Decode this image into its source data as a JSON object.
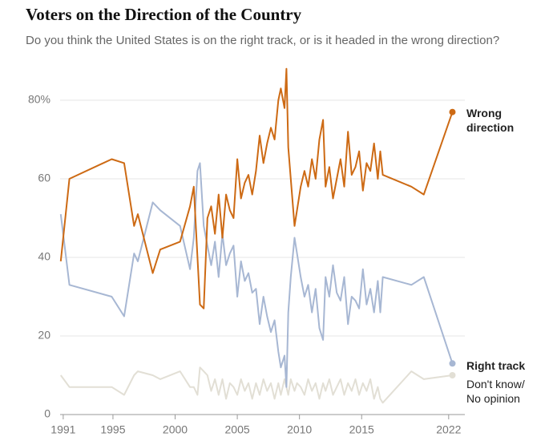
{
  "chart_data": {
    "type": "line",
    "title": "Voters on the Direction of the Country",
    "subtitle": "Do you think the United States is on the right track, or is it headed in the wrong direction?",
    "x": [
      1990.8,
      1991.5,
      1994.9,
      1995.9,
      1996.7,
      1997.0,
      1998.2,
      1998.8,
      2000.4,
      2001.2,
      2001.5,
      2001.8,
      2002.0,
      2002.3,
      2002.6,
      2002.9,
      2003.2,
      2003.5,
      2003.8,
      2004.1,
      2004.4,
      2004.7,
      2005.0,
      2005.3,
      2005.6,
      2005.9,
      2006.2,
      2006.5,
      2006.8,
      2007.1,
      2007.4,
      2007.7,
      2008.0,
      2008.3,
      2008.5,
      2008.8,
      2008.95,
      2009.1,
      2009.3,
      2009.6,
      2009.8,
      2010.1,
      2010.4,
      2010.7,
      2011.0,
      2011.3,
      2011.6,
      2011.9,
      2012.1,
      2012.4,
      2012.7,
      2013.0,
      2013.3,
      2013.6,
      2013.9,
      2014.2,
      2014.5,
      2014.8,
      2015.1,
      2015.4,
      2015.7,
      2016.0,
      2016.3,
      2016.5,
      2016.7,
      2019.0,
      2020.0,
      2022.3
    ],
    "series": [
      {
        "name": "Wrong direction",
        "color": "#cd6a14",
        "values": [
          39,
          60,
          65,
          64,
          48,
          51,
          36,
          42,
          44,
          53,
          58,
          40,
          28,
          27,
          50,
          53,
          46,
          56,
          45,
          56,
          52,
          50,
          65,
          55,
          59,
          61,
          56,
          62,
          71,
          64,
          69,
          73,
          70,
          80,
          83,
          78,
          88,
          68,
          60,
          48,
          52,
          58,
          62,
          58,
          65,
          60,
          70,
          75,
          58,
          63,
          55,
          60,
          65,
          58,
          72,
          61,
          63,
          67,
          57,
          64,
          62,
          69,
          60,
          67,
          61,
          58,
          56,
          77
        ]
      },
      {
        "name": "Right track",
        "color": "#a7b7d3",
        "values": [
          51,
          33,
          30,
          25,
          41,
          39,
          54,
          52,
          48,
          37,
          45,
          62,
          64,
          48,
          43,
          38,
          44,
          35,
          46,
          38,
          41,
          43,
          30,
          39,
          34,
          36,
          31,
          32,
          23,
          30,
          25,
          21,
          24,
          16,
          12,
          15,
          7,
          26,
          35,
          45,
          41,
          35,
          30,
          33,
          26,
          32,
          22,
          19,
          35,
          30,
          38,
          31,
          29,
          35,
          23,
          30,
          29,
          27,
          37,
          28,
          32,
          26,
          34,
          26,
          35,
          33,
          35,
          13
        ]
      },
      {
        "name": "Don't know/ No opinion",
        "color": "#e2dfd5",
        "values": [
          10,
          7,
          7,
          5,
          10,
          11,
          10,
          9,
          11,
          7,
          7,
          5,
          12,
          11,
          10,
          6,
          9,
          5,
          9,
          4,
          8,
          7,
          5,
          9,
          6,
          8,
          4,
          8,
          5,
          9,
          6,
          8,
          4,
          8,
          5,
          9,
          7,
          5,
          9,
          6,
          8,
          7,
          5,
          9,
          6,
          8,
          4,
          8,
          6,
          9,
          5,
          7,
          9,
          5,
          8,
          6,
          9,
          5,
          8,
          6,
          9,
          4,
          7,
          4,
          3,
          11,
          9,
          10
        ]
      }
    ],
    "xlim": [
      1990.75,
      2023.3
    ],
    "xticks": [
      1991,
      1995,
      2000,
      2005,
      2010,
      2015,
      2022
    ],
    "ylim": [
      0,
      90
    ],
    "yticks": [
      0,
      20,
      40,
      60,
      {
        "value": 80,
        "label": "80%"
      }
    ],
    "grid": true
  }
}
